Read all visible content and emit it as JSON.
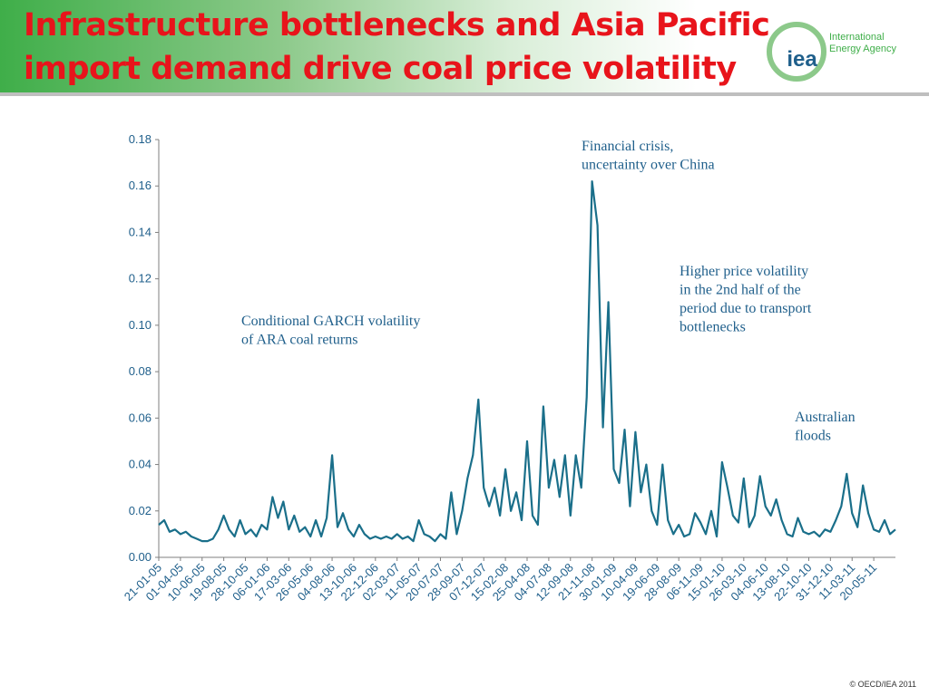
{
  "chart_data": {
    "type": "line",
    "title": "Infrastructure bottlenecks and Asia Pacific import demand drive coal price volatility",
    "color": "#1a6f8a",
    "categories": [
      "21-01-05",
      null,
      null,
      null,
      "01-04-05",
      null,
      null,
      null,
      "10-06-05",
      null,
      null,
      null,
      "19-08-05",
      null,
      null,
      null,
      "28-10-05",
      null,
      null,
      null,
      "06-01-06",
      null,
      null,
      null,
      "17-03-06",
      null,
      null,
      null,
      "26-05-06",
      null,
      null,
      null,
      "04-08-06",
      null,
      null,
      null,
      "13-10-06",
      null,
      null,
      null,
      "22-12-06",
      null,
      null,
      null,
      "02-03-07",
      null,
      null,
      null,
      "11-05-07",
      null,
      null,
      null,
      "20-07-07",
      null,
      null,
      null,
      "28-09-07",
      null,
      null,
      null,
      "07-12-07",
      null,
      null,
      null,
      "15-02-08",
      null,
      null,
      null,
      "25-04-08",
      null,
      null,
      null,
      "04-07-08",
      null,
      null,
      null,
      "12-09-08",
      null,
      null,
      null,
      "21-11-08",
      null,
      null,
      null,
      "30-01-09",
      null,
      null,
      null,
      "10-04-09",
      null,
      null,
      null,
      "19-06-09",
      null,
      null,
      null,
      "28-08-09",
      null,
      null,
      null,
      "06-11-09",
      null,
      null,
      null,
      "15-01-10",
      null,
      null,
      null,
      "26-03-10",
      null,
      null,
      null,
      "04-06-10",
      null,
      null,
      null,
      "13-08-10",
      null,
      null,
      null,
      "22-10-10",
      null,
      null,
      null,
      "31-12-10",
      null,
      null,
      null,
      "11-03-11",
      null,
      null,
      null,
      "20-05-11",
      null,
      null,
      null,
      null
    ],
    "values": [
      0.014,
      0.016,
      0.011,
      0.012,
      0.01,
      0.011,
      0.009,
      0.008,
      0.007,
      0.007,
      0.008,
      0.012,
      0.018,
      0.012,
      0.009,
      0.016,
      0.01,
      0.012,
      0.009,
      0.014,
      0.012,
      0.026,
      0.017,
      0.024,
      0.012,
      0.018,
      0.011,
      0.013,
      0.009,
      0.016,
      0.009,
      0.017,
      0.044,
      0.013,
      0.019,
      0.012,
      0.009,
      0.014,
      0.01,
      0.008,
      0.009,
      0.008,
      0.009,
      0.008,
      0.01,
      0.008,
      0.009,
      0.007,
      0.016,
      0.01,
      0.009,
      0.007,
      0.01,
      0.008,
      0.028,
      0.01,
      0.02,
      0.034,
      0.044,
      0.068,
      0.03,
      0.022,
      0.03,
      0.018,
      0.038,
      0.02,
      0.028,
      0.016,
      0.05,
      0.018,
      0.014,
      0.065,
      0.03,
      0.042,
      0.026,
      0.044,
      0.018,
      0.044,
      0.03,
      0.069,
      0.162,
      0.143,
      0.056,
      0.11,
      0.038,
      0.032,
      0.055,
      0.022,
      0.054,
      0.028,
      0.04,
      0.02,
      0.014,
      0.04,
      0.016,
      0.01,
      0.014,
      0.009,
      0.01,
      0.019,
      0.015,
      0.01,
      0.02,
      0.009,
      0.041,
      0.03,
      0.018,
      0.015,
      0.034,
      0.013,
      0.018,
      0.035,
      0.022,
      0.018,
      0.025,
      0.016,
      0.01,
      0.009,
      0.017,
      0.011,
      0.01,
      0.011,
      0.009,
      0.012,
      0.011,
      0.016,
      0.022,
      0.036,
      0.019,
      0.013,
      0.031,
      0.019,
      0.012,
      0.011,
      0.016,
      0.01,
      0.012
    ],
    "ylim": [
      0,
      0.18
    ],
    "yticks": [
      {
        "value": 0,
        "label": "0.00"
      },
      0.02,
      0.04,
      0.06,
      0.08,
      {
        "value": 0.1,
        "label": "0.10"
      },
      0.12,
      0.14,
      0.16,
      0.18
    ],
    "annotations": [
      {
        "lines": [
          "Conditional GARCH volatility",
          "of ARA coal returns"
        ]
      },
      {
        "lines": [
          "Financial crisis,",
          "uncertainty over China"
        ]
      },
      {
        "lines": [
          "Higher price volatility",
          "in the 2nd half of the",
          "period due to transport",
          "bottlenecks"
        ]
      },
      {
        "lines": [
          "Australian",
          "floods"
        ]
      }
    ]
  },
  "logo": {
    "mark": "iea",
    "lines": [
      "International",
      "Energy Agency"
    ]
  },
  "footer": "© OECD/IEA 2011"
}
